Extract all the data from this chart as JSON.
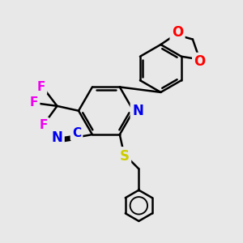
{
  "bg_color": "#e8e8e8",
  "bond_color": "#000000",
  "bond_width": 1.8,
  "atom_labels": {
    "N_pyridine": {
      "color": "#0000ee",
      "fontsize": 12
    },
    "C_nitrile": {
      "color": "#0000ee",
      "fontsize": 12
    },
    "N_nitrile": {
      "color": "#0000ee",
      "fontsize": 12
    },
    "S": {
      "color": "#cccc00",
      "fontsize": 12
    },
    "F": {
      "color": "#ee00ee",
      "fontsize": 11
    },
    "O": {
      "color": "#ff0000",
      "fontsize": 12
    }
  },
  "layout": {
    "xlim": [
      0,
      10
    ],
    "ylim": [
      0,
      10
    ]
  }
}
